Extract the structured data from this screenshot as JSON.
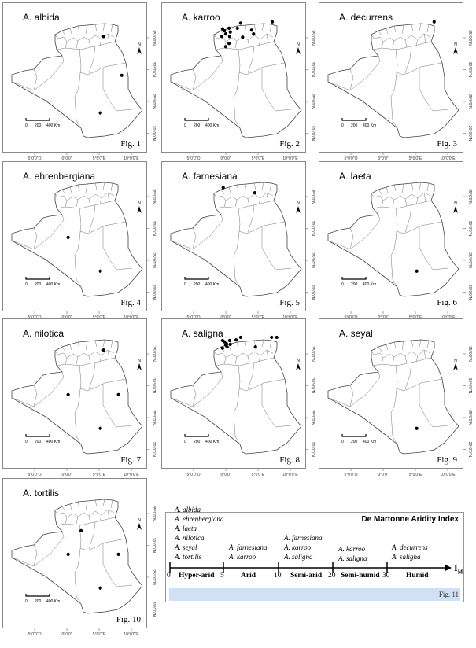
{
  "axes": {
    "lon_labels": [
      "5°0'0\"O",
      "0°0'0\"",
      "5°0'0\"E",
      "10°0'0\"E"
    ],
    "lat_labels": [
      "35°0'0\"N",
      "30°0'0\"N",
      "25°0'0\"N",
      "20°0'0\"N"
    ],
    "north_label": "N",
    "scale_labels": [
      "0",
      "200",
      "400 Km"
    ]
  },
  "panels": [
    {
      "title": "A. albida",
      "fig": "Fig. 1",
      "points": [
        [
          5.7,
          35.2
        ],
        [
          8.5,
          29.1
        ],
        [
          5.2,
          23.2
        ]
      ]
    },
    {
      "title": "A. karroo",
      "fig": "Fig. 2",
      "points": [
        [
          2.3,
          37.3
        ],
        [
          7.2,
          37.5
        ],
        [
          -0.5,
          36.4
        ],
        [
          0.5,
          36.5
        ],
        [
          -0.2,
          36.1
        ],
        [
          0.7,
          35.9
        ],
        [
          0.0,
          35.6
        ],
        [
          1.8,
          36.5
        ],
        [
          4.0,
          36.2
        ],
        [
          -0.6,
          35.2
        ],
        [
          0.6,
          35.2
        ],
        [
          4.3,
          35.6
        ],
        [
          2.6,
          35.1
        ],
        [
          0.5,
          34.1
        ],
        [
          0.0,
          33.6
        ]
      ]
    },
    {
      "title": "A. decurrens",
      "fig": "Fig. 3",
      "points": [
        [
          7.9,
          37.5
        ]
      ]
    },
    {
      "title": "A. ehrenbergiana",
      "fig": "Fig. 4",
      "points": [
        [
          0.2,
          28.6
        ],
        [
          5.2,
          23.3
        ]
      ]
    },
    {
      "title": "A. farnesiana",
      "fig": "Fig. 5",
      "points": [
        [
          -0.4,
          36.4
        ],
        [
          4.5,
          35.6
        ]
      ]
    },
    {
      "title": "A. laeta",
      "fig": "Fig. 6",
      "points": [
        [
          5.2,
          23.3
        ]
      ]
    },
    {
      "title": "A. nilotica",
      "fig": "Fig. 7",
      "points": [
        [
          5.7,
          35.6
        ],
        [
          0.2,
          28.6
        ],
        [
          8.0,
          28.6
        ],
        [
          5.2,
          23.3
        ]
      ]
    },
    {
      "title": "A. saligna",
      "fig": "Fig. 8",
      "points": [
        [
          2.3,
          37.6
        ],
        [
          7.1,
          37.6
        ],
        [
          7.9,
          37.6
        ],
        [
          -0.5,
          37.1
        ],
        [
          -0.2,
          36.9
        ],
        [
          0.6,
          37.1
        ],
        [
          1.6,
          37.2
        ],
        [
          0.1,
          36.6
        ],
        [
          0.7,
          36.5
        ],
        [
          0.0,
          36.4
        ],
        [
          -0.5,
          35.9
        ],
        [
          0.2,
          36.1
        ],
        [
          4.6,
          36.1
        ]
      ]
    },
    {
      "title": "A. seyal",
      "fig": "Fig. 9",
      "points": [
        [
          5.2,
          23.3
        ]
      ]
    },
    {
      "title": "A. tortilis",
      "fig": "Fig. 10",
      "points": [
        [
          2.2,
          32.3
        ],
        [
          0.2,
          28.6
        ],
        [
          8.0,
          28.6
        ],
        [
          5.2,
          23.3
        ]
      ]
    }
  ],
  "aridity": {
    "title": "De Martonne Aridity Index",
    "axis_symbol": "I",
    "axis_subscript": "M",
    "ticks": [
      "0",
      "5",
      "10",
      "20",
      "30"
    ],
    "zones": [
      {
        "label": "Hyper-arid",
        "species": [
          "A. albida",
          "A. ehrenbergiana",
          "A. laeta",
          "A. nilotica",
          "A. seyal",
          "A. tortilis"
        ]
      },
      {
        "label": "Arid",
        "species": [
          "A. farnesiana",
          "A. karroo"
        ]
      },
      {
        "label": "Semi-arid",
        "species": [
          "A. farnesiana",
          "A. karroo",
          "A. saligna"
        ]
      },
      {
        "label": "Semi-humid",
        "species": [
          "A. karroo",
          "A. saligna"
        ]
      },
      {
        "label": "Humid",
        "species": [
          "A. decurrens",
          "A. saligna"
        ]
      }
    ],
    "fig": "Fig. 11",
    "band_color": "#cfe0f7"
  }
}
